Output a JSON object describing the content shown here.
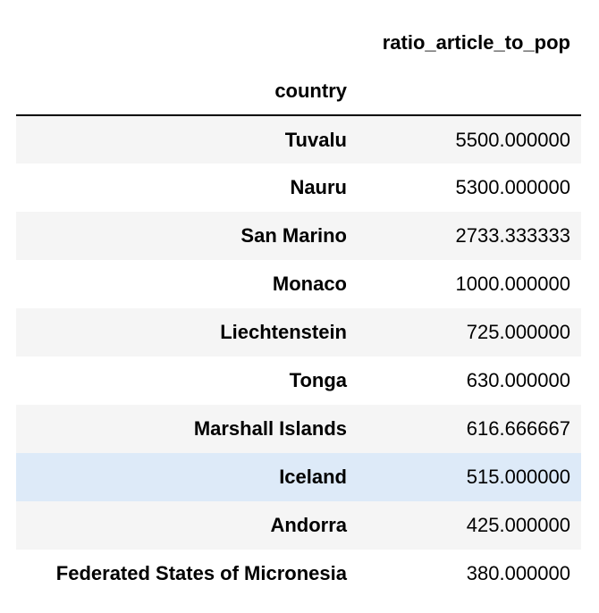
{
  "table": {
    "value_column": "ratio_article_to_pop",
    "index_name": "country",
    "rows": [
      {
        "country": "Tuvalu",
        "value": "5500.000000"
      },
      {
        "country": "Nauru",
        "value": "5300.000000"
      },
      {
        "country": "San Marino",
        "value": "2733.333333"
      },
      {
        "country": "Monaco",
        "value": "1000.000000"
      },
      {
        "country": "Liechtenstein",
        "value": "725.000000"
      },
      {
        "country": "Tonga",
        "value": "630.000000"
      },
      {
        "country": "Marshall Islands",
        "value": "616.666667"
      },
      {
        "country": "Iceland",
        "value": "515.000000"
      },
      {
        "country": "Andorra",
        "value": "425.000000"
      },
      {
        "country": "Federated States of Micronesia",
        "value": "380.000000"
      }
    ],
    "highlighted_row": 7,
    "colors": {
      "stripe": "#f5f5f5",
      "highlight": "#ddeaf8",
      "rule": "#000000"
    }
  }
}
